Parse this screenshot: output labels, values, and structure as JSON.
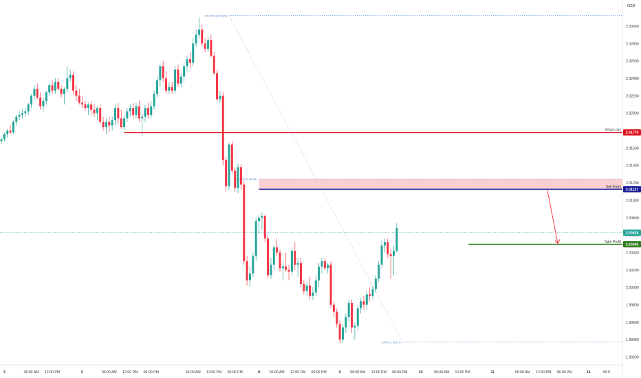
{
  "chart_data": {
    "type": "candlestick",
    "currency": "NZD",
    "y_axis": {
      "min": 1.992,
      "max": 2.032,
      "ticks": [
        "2.03000",
        "2.02800",
        "2.02600",
        "2.02400",
        "2.02200",
        "2.02000",
        "2.01800",
        "2.01600",
        "2.01400",
        "2.01200",
        "2.01000",
        "2.00800",
        "2.00600",
        "2.00400",
        "2.00200",
        "2.00000",
        "1.99800",
        "1.99600",
        "1.99400",
        "1.99200"
      ]
    },
    "x_axis": {
      "labels": [
        {
          "text": "3",
          "bar": 1
        },
        {
          "text": "06:00 AM",
          "bar": 10
        },
        {
          "text": "12:00 PM",
          "bar": 17
        },
        {
          "text": "5",
          "bar": 27
        },
        {
          "text": "06:00 AM",
          "bar": 36
        },
        {
          "text": "12:00 PM",
          "bar": 43
        },
        {
          "text": "06:00 PM",
          "bar": 50
        },
        {
          "text": "06:00 AM",
          "bar": 64
        },
        {
          "text": "12:00 PM",
          "bar": 71
        },
        {
          "text": "06:00 PM",
          "bar": 78
        },
        {
          "text": "8",
          "bar": 86
        },
        {
          "text": "06:00 AM",
          "bar": 92
        },
        {
          "text": "12:00 PM",
          "bar": 99
        },
        {
          "text": "06:00 PM",
          "bar": 106
        },
        {
          "text": "9",
          "bar": 113
        },
        {
          "text": "06:00 AM",
          "bar": 119
        },
        {
          "text": "12:00 PM",
          "bar": 126
        },
        {
          "text": "06:00 PM",
          "bar": 133
        },
        {
          "text": "10",
          "bar": 140
        },
        {
          "text": "06:00 AM",
          "bar": 147
        },
        {
          "text": "12:00 PM",
          "bar": 154
        },
        {
          "text": "11",
          "bar": 164
        },
        {
          "text": "06:00 AM",
          "bar": 174
        },
        {
          "text": "12:00 PM",
          "bar": 181
        },
        {
          "text": "06:00 PM",
          "bar": 188
        },
        {
          "text": "14",
          "bar": 196
        },
        {
          "text": "06:0",
          "bar": 202
        }
      ]
    },
    "candles": [
      [
        2.0168,
        2.0172,
        2.0165,
        2.017
      ],
      [
        2.017,
        2.0178,
        2.0168,
        2.0176
      ],
      [
        2.0176,
        2.0182,
        2.0172,
        2.018
      ],
      [
        2.018,
        2.0186,
        2.0176,
        2.0178
      ],
      [
        2.0178,
        2.0192,
        2.0176,
        2.019
      ],
      [
        2.019,
        2.0198,
        2.0186,
        2.0196
      ],
      [
        2.0196,
        2.0202,
        2.0192,
        2.0198
      ],
      [
        2.0198,
        2.0204,
        2.0194,
        2.02
      ],
      [
        2.02,
        2.0206,
        2.0196,
        2.0202
      ],
      [
        2.0202,
        2.0212,
        2.0198,
        2.021
      ],
      [
        2.021,
        2.0222,
        2.0206,
        2.022
      ],
      [
        2.022,
        2.0232,
        2.0216,
        2.0228
      ],
      [
        2.0228,
        2.0234,
        2.0216,
        2.0218
      ],
      [
        2.0218,
        2.0224,
        2.0204,
        2.0208
      ],
      [
        2.0208,
        2.0218,
        2.0202,
        2.0214
      ],
      [
        2.0214,
        2.0226,
        2.021,
        2.0224
      ],
      [
        2.0224,
        2.0234,
        2.022,
        2.0232
      ],
      [
        2.0232,
        2.0238,
        2.0222,
        2.0226
      ],
      [
        2.0226,
        2.024,
        2.0222,
        2.0236
      ],
      [
        2.0236,
        2.024,
        2.0226,
        2.0228
      ],
      [
        2.0228,
        2.0232,
        2.0218,
        2.0222
      ],
      [
        2.0222,
        2.023,
        2.021,
        2.0228
      ],
      [
        2.0228,
        2.0254,
        2.0224,
        2.024
      ],
      [
        2.024,
        2.025,
        2.0236,
        2.0244
      ],
      [
        2.0244,
        2.0248,
        2.0222,
        2.0226
      ],
      [
        2.0226,
        2.0232,
        2.0214,
        2.022
      ],
      [
        2.022,
        2.0228,
        2.021,
        2.0212
      ],
      [
        2.0212,
        2.022,
        2.0206,
        2.021
      ],
      [
        2.021,
        2.0214,
        2.0202,
        2.0206
      ],
      [
        2.0206,
        2.0212,
        2.0198,
        2.021
      ],
      [
        2.021,
        2.0214,
        2.0198,
        2.0204
      ],
      [
        2.0204,
        2.021,
        2.0196,
        2.02
      ],
      [
        2.02,
        2.0208,
        2.0192,
        2.0206
      ],
      [
        2.0206,
        2.021,
        2.0188,
        2.019
      ],
      [
        2.019,
        2.0196,
        2.018,
        2.0184
      ],
      [
        2.0184,
        2.0194,
        2.0176,
        2.019
      ],
      [
        2.019,
        2.0196,
        2.0178,
        2.0186
      ],
      [
        2.0186,
        2.0196,
        2.018,
        2.0192
      ],
      [
        2.0192,
        2.021,
        2.0186,
        2.0206
      ],
      [
        2.0206,
        2.0212,
        2.0188,
        2.0194
      ],
      [
        2.0194,
        2.0204,
        2.0182,
        2.0184
      ],
      [
        2.0184,
        2.0198,
        2.018,
        2.0194
      ],
      [
        2.0194,
        2.0206,
        2.019,
        2.0202
      ],
      [
        2.0202,
        2.021,
        2.0196,
        2.0206
      ],
      [
        2.0206,
        2.0212,
        2.0194,
        2.0198
      ],
      [
        2.0198,
        2.0212,
        2.0194,
        2.0208
      ],
      [
        2.0208,
        2.0214,
        2.019,
        2.0194
      ],
      [
        2.0194,
        2.02,
        2.0174,
        2.0196
      ],
      [
        2.0196,
        2.021,
        2.019,
        2.0206
      ],
      [
        2.0206,
        2.0212,
        2.0194,
        2.0198
      ],
      [
        2.0198,
        2.0214,
        2.0194,
        2.0208
      ],
      [
        2.0208,
        2.0226,
        2.0204,
        2.0222
      ],
      [
        2.0222,
        2.0242,
        2.0218,
        2.0238
      ],
      [
        2.0238,
        2.0256,
        2.023,
        2.0254
      ],
      [
        2.0254,
        2.026,
        2.0236,
        2.024
      ],
      [
        2.024,
        2.0248,
        2.0222,
        2.0226
      ],
      [
        2.0226,
        2.0236,
        2.0222,
        2.023
      ],
      [
        2.023,
        2.0236,
        2.0222,
        2.0226
      ],
      [
        2.0226,
        2.0254,
        2.0222,
        2.025
      ],
      [
        2.025,
        2.0256,
        2.023,
        2.0234
      ],
      [
        2.0234,
        2.0246,
        2.023,
        2.0242
      ],
      [
        2.0242,
        2.0258,
        2.0236,
        2.0254
      ],
      [
        2.0254,
        2.0266,
        2.0248,
        2.0262
      ],
      [
        2.0262,
        2.027,
        2.0252,
        2.0258
      ],
      [
        2.0258,
        2.0286,
        2.0254,
        2.028
      ],
      [
        2.028,
        2.0296,
        2.0276,
        2.029
      ],
      [
        2.029,
        2.031,
        2.0286,
        2.0296
      ],
      [
        2.0296,
        2.0302,
        2.0276,
        2.028
      ],
      [
        2.028,
        2.0286,
        2.027,
        2.0274
      ],
      [
        2.0274,
        2.0288,
        2.027,
        2.0284
      ],
      [
        2.0284,
        2.029,
        2.0264,
        2.0266
      ],
      [
        2.0266,
        2.027,
        2.0244,
        2.0246
      ],
      [
        2.0246,
        2.025,
        2.0214,
        2.0216
      ],
      [
        2.0216,
        2.0226,
        2.0212,
        2.022
      ],
      [
        2.022,
        2.0224,
        2.014,
        2.0146
      ],
      [
        2.0146,
        2.015,
        2.011,
        2.0116
      ],
      [
        2.0116,
        2.0166,
        2.0112,
        2.0164
      ],
      [
        2.0164,
        2.0168,
        2.013,
        2.0134
      ],
      [
        2.0134,
        2.0138,
        2.011,
        2.0114
      ],
      [
        2.0114,
        2.0142,
        2.0108,
        2.0138
      ],
      [
        2.0138,
        2.0142,
        2.0112,
        2.0118
      ],
      [
        2.0118,
        2.0122,
        2.0026,
        2.003
      ],
      [
        2.003,
        2.0036,
        2.0002,
        2.0008
      ],
      [
        2.0008,
        2.0024,
        2.0,
        2.0016
      ],
      [
        2.0016,
        2.004,
        2.0012,
        2.0036
      ],
      [
        2.0036,
        2.008,
        2.003,
        2.0076
      ],
      [
        2.0076,
        2.0084,
        2.0062,
        2.008
      ],
      [
        2.008,
        2.0086,
        2.0066,
        2.0082
      ],
      [
        2.0082,
        2.0084,
        2.0052,
        2.0056
      ],
      [
        2.0056,
        2.006,
        2.001,
        2.0014
      ],
      [
        2.0014,
        2.0034,
        2.001,
        2.0026
      ],
      [
        2.0026,
        2.0048,
        2.002,
        2.0046
      ],
      [
        2.0046,
        2.0056,
        2.0036,
        2.004
      ],
      [
        2.004,
        2.0044,
        2.0018,
        2.0022
      ],
      [
        2.0022,
        2.003,
        2.0008,
        2.0024
      ],
      [
        2.0024,
        2.004,
        2.0018,
        2.002
      ],
      [
        2.002,
        2.0026,
        2.0008,
        2.0018
      ],
      [
        2.0018,
        2.0046,
        2.0014,
        2.0042
      ],
      [
        2.0042,
        2.0052,
        2.002,
        2.0026
      ],
      [
        2.0026,
        2.0034,
        2.0012,
        2.0028
      ],
      [
        2.0028,
        2.0034,
        2.0,
        2.0004
      ],
      [
        2.0004,
        2.0008,
        1.9992,
        1.9996
      ],
      [
        1.9996,
        2.0006,
        1.999,
        2.0002
      ],
      [
        2.0002,
        2.0012,
        1.9986,
        1.999
      ],
      [
        1.999,
        2.0,
        1.9986,
        1.9994
      ],
      [
        1.9994,
        2.0014,
        1.999,
        2.0008
      ],
      [
        2.0008,
        2.0028,
        2.0,
        2.0024
      ],
      [
        2.0024,
        2.0034,
        2.0016,
        2.003
      ],
      [
        2.003,
        2.0034,
        2.002,
        2.0022
      ],
      [
        2.0022,
        2.0028,
        2.0016,
        2.0026
      ],
      [
        2.0026,
        2.003,
        1.9976,
        1.998
      ],
      [
        1.998,
        1.9984,
        1.9966,
        1.9972
      ],
      [
        1.9972,
        1.9976,
        1.9954,
        1.9958
      ],
      [
        1.9958,
        1.9962,
        1.9936,
        1.994
      ],
      [
        1.994,
        1.9958,
        1.9936,
        1.9954
      ],
      [
        1.9954,
        1.997,
        1.9948,
        1.9966
      ],
      [
        1.9966,
        1.9986,
        1.996,
        1.9982
      ],
      [
        1.9982,
        1.9986,
        1.9948,
        1.9954
      ],
      [
        1.9954,
        1.996,
        1.994,
        1.9956
      ],
      [
        1.9956,
        1.998,
        1.995,
        1.9976
      ],
      [
        1.9976,
        1.9988,
        1.997,
        1.9984
      ],
      [
        1.9984,
        1.999,
        1.9974,
        1.998
      ],
      [
        1.998,
        1.9996,
        1.9974,
        1.9992
      ],
      [
        1.9992,
        2.0,
        1.9984,
        1.999
      ],
      [
        1.999,
        2.0002,
        1.9986,
        1.9998
      ],
      [
        1.9998,
        2.0014,
        1.9994,
        2.001
      ],
      [
        2.001,
        2.003,
        2.0006,
        2.0026
      ],
      [
        2.0026,
        2.0054,
        2.0022,
        2.0048
      ],
      [
        2.0048,
        2.0056,
        2.004,
        2.0052
      ],
      [
        2.0052,
        2.0056,
        2.0034,
        2.0038
      ],
      [
        2.0038,
        2.0044,
        2.001,
        2.0036
      ],
      [
        2.0036,
        2.0048,
        2.0014,
        2.0042
      ],
      [
        2.0042,
        2.0074,
        2.004,
        2.0068
      ]
    ],
    "fib_levels": [
      {
        "label": "100.00% (2.03121)",
        "price": 2.03121
      },
      {
        "label": "50.00% (2.01246)",
        "price": 2.01246
      },
      {
        "label": "0.00% (1.99371)",
        "price": 1.99371
      }
    ],
    "levels": [
      {
        "name": "Stop Loss",
        "price": 2.01779,
        "label": "2.01779",
        "color": "#e0101a"
      },
      {
        "name": "Sell Entry",
        "price": 2.01127,
        "label": "2.01127",
        "color": "#1a1a9a"
      },
      {
        "name": "Take Profit",
        "price": 2.00495,
        "label": "2.00495",
        "color": "#2e7d1e"
      }
    ],
    "current_price": {
      "price": 2.00628,
      "label": "2.00628",
      "color": "#26a69a"
    },
    "colors": {
      "up": "#26a69a",
      "down": "#f23645",
      "zone": "#f7c7cb"
    }
  }
}
